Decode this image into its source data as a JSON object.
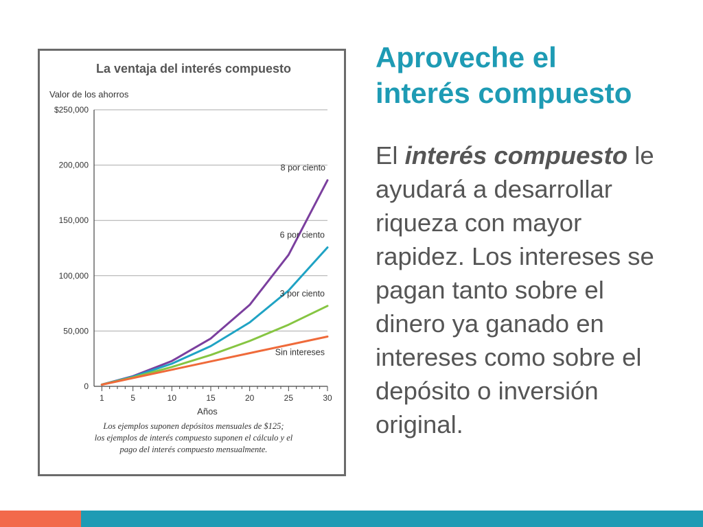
{
  "slide": {
    "title_line1": "Aproveche el",
    "title_line2": "interés compuesto",
    "body_lead": "El ",
    "body_term": "interés compuesto",
    "body_rest": " le ayudará a desarrollar riqueza con mayor rapidez. Los intereses se pagan tanto sobre el dinero ya ganado en intereses como sobre el depósito o inversión original."
  },
  "colors": {
    "title": "#1e9bb4",
    "body_text": "#555555",
    "footer_bar": "#1e9bb4",
    "footer_accent": "#f26a4b",
    "frame": "#6b6b6b"
  },
  "chart_data": {
    "type": "line",
    "title": "La ventaja del interés compuesto",
    "ylabel": "Valor de los ahorros",
    "xlabel": "Años",
    "ylim": [
      0,
      250000
    ],
    "xlim": [
      0,
      30
    ],
    "yticks": [
      0,
      50000,
      100000,
      150000,
      200000,
      250000
    ],
    "ytick_labels": [
      "0",
      "50,000",
      "100,000",
      "150,000",
      "200,000",
      "$250,000"
    ],
    "xticks": [
      1,
      5,
      10,
      15,
      20,
      25,
      30
    ],
    "xtick_labels": [
      "1",
      "5",
      "10",
      "15",
      "20",
      "25",
      "30"
    ],
    "grid": true,
    "legend": "labels at line ends",
    "series": [
      {
        "name": "8 por ciento",
        "color": "#7b3f9e",
        "x": [
          1,
          5,
          10,
          15,
          20,
          25,
          30
        ],
        "values": [
          1560,
          9180,
          22870,
          43260,
          73630,
          118870,
          186300
        ]
      },
      {
        "name": "6 por ciento",
        "color": "#1fa3c4",
        "x": [
          1,
          5,
          10,
          15,
          20,
          25,
          30
        ],
        "values": [
          1540,
          8720,
          20480,
          36350,
          57750,
          86620,
          125570
        ]
      },
      {
        "name": "3 por ciento",
        "color": "#86c542",
        "x": [
          1,
          5,
          10,
          15,
          20,
          25,
          30
        ],
        "values": [
          1520,
          8080,
          17470,
          28360,
          41010,
          55680,
          72700
        ]
      },
      {
        "name": "Sin intereses",
        "color": "#ef6a3a",
        "x": [
          1,
          5,
          10,
          15,
          20,
          25,
          30
        ],
        "values": [
          1500,
          7500,
          15000,
          22500,
          30000,
          37500,
          45000
        ]
      }
    ],
    "footnote_line1": "Los ejemplos suponen depósitos mensuales de $125;",
    "footnote_line2": "los ejemplos de interés compuesto suponen el cálculo y el",
    "footnote_line3": "pago del interés compuesto mensualmente."
  }
}
